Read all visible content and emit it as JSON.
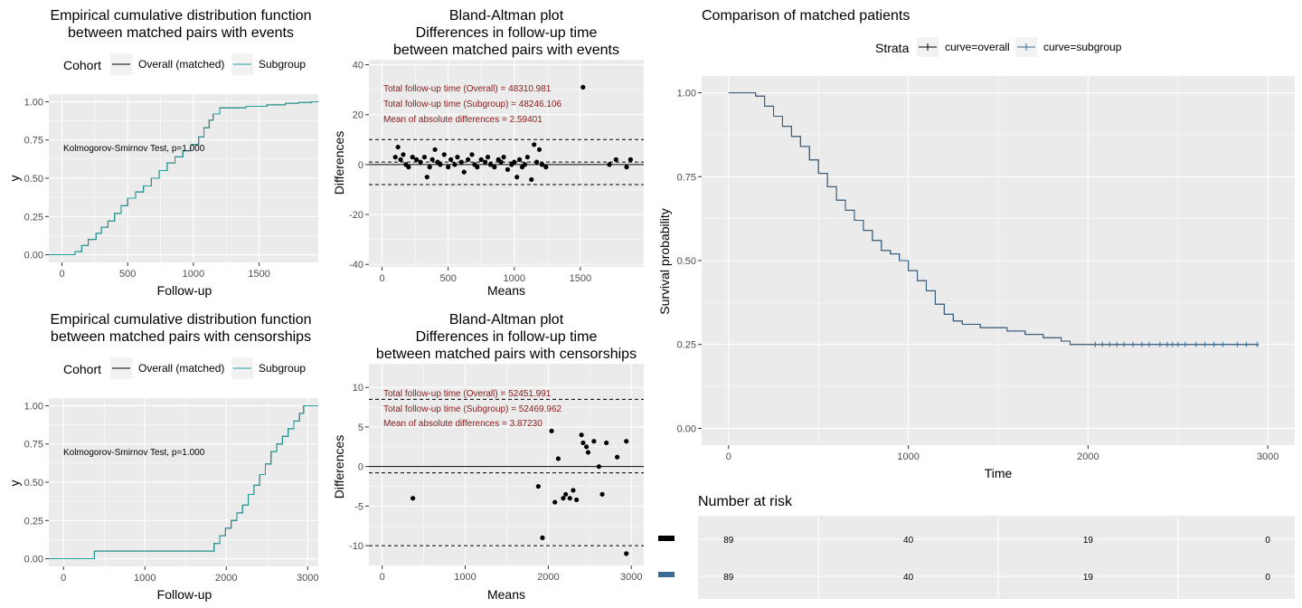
{
  "colors": {
    "panel_bg": "#ebebeb",
    "grid": "#ffffff",
    "overall": "#000000",
    "subgroup": "#1fa3a0",
    "km_overall": "#000000",
    "km_subgroup": "#3b6a93",
    "annotation": "#8b1a1a"
  },
  "chart_data": [
    {
      "id": "ecdf_events",
      "type": "line",
      "title_lines": [
        "Empirical cumulative distribution function",
        "between matched pairs with events"
      ],
      "xlabel": "Follow-up",
      "ylabel": "y",
      "xlim": [
        -100,
        1950
      ],
      "ylim": [
        -0.05,
        1.05
      ],
      "xticks": [
        0,
        500,
        1000,
        1500
      ],
      "yticks": [
        0,
        0.25,
        0.5,
        0.75,
        1
      ],
      "ytick_labels": [
        "0.00",
        "0.25",
        "0.50",
        "0.75",
        "1.00"
      ],
      "legend": {
        "title": "Cohort",
        "items": [
          "Overall (matched)",
          "Subgroup"
        ]
      },
      "annotation": "Kolmogorov-Smirnov Test, p=1.000",
      "series": [
        {
          "name": "Overall (matched)",
          "x": [
            -100,
            100,
            150,
            200,
            260,
            300,
            350,
            400,
            450,
            500,
            560,
            620,
            680,
            740,
            800,
            860,
            920,
            980,
            1040,
            1080,
            1120,
            1150,
            1200,
            1300,
            1400,
            1480,
            1560,
            1700,
            1800,
            1900,
            1950
          ],
          "y": [
            0,
            0.02,
            0.06,
            0.1,
            0.14,
            0.18,
            0.22,
            0.27,
            0.32,
            0.37,
            0.41,
            0.45,
            0.5,
            0.55,
            0.6,
            0.64,
            0.68,
            0.72,
            0.77,
            0.83,
            0.88,
            0.92,
            0.96,
            0.96,
            0.97,
            0.97,
            0.98,
            0.99,
            0.995,
            1,
            1
          ]
        },
        {
          "name": "Subgroup",
          "x": [
            -100,
            100,
            150,
            200,
            260,
            300,
            350,
            400,
            450,
            500,
            560,
            620,
            680,
            740,
            800,
            860,
            920,
            980,
            1040,
            1080,
            1120,
            1150,
            1200,
            1300,
            1400,
            1480,
            1560,
            1700,
            1800,
            1900,
            1950
          ],
          "y": [
            0,
            0.02,
            0.06,
            0.1,
            0.14,
            0.18,
            0.22,
            0.27,
            0.32,
            0.37,
            0.41,
            0.45,
            0.5,
            0.55,
            0.6,
            0.64,
            0.68,
            0.72,
            0.77,
            0.83,
            0.88,
            0.92,
            0.96,
            0.96,
            0.97,
            0.97,
            0.98,
            0.99,
            0.995,
            1,
            1
          ]
        }
      ]
    },
    {
      "id": "ecdf_censor",
      "type": "line",
      "title_lines": [
        "Empirical cumulative distribution function",
        "between matched pairs with censorships"
      ],
      "xlabel": "Follow-up",
      "ylabel": "y",
      "xlim": [
        -180,
        3130
      ],
      "ylim": [
        -0.05,
        1.05
      ],
      "xticks": [
        0,
        1000,
        2000,
        3000
      ],
      "yticks": [
        0,
        0.25,
        0.5,
        0.75,
        1
      ],
      "ytick_labels": [
        "0.00",
        "0.25",
        "0.50",
        "0.75",
        "1.00"
      ],
      "legend": {
        "title": "Cohort",
        "items": [
          "Overall (matched)",
          "Subgroup"
        ]
      },
      "annotation": "Kolmogorov-Smirnov Test, p=1.000",
      "series": [
        {
          "name": "Overall (matched)",
          "x": [
            -180,
            380,
            1800,
            1850,
            1920,
            1990,
            2060,
            2130,
            2200,
            2270,
            2340,
            2410,
            2480,
            2550,
            2620,
            2690,
            2760,
            2830,
            2900,
            2950,
            3000,
            3130
          ],
          "y": [
            0,
            0.05,
            0.05,
            0.1,
            0.15,
            0.2,
            0.25,
            0.3,
            0.35,
            0.42,
            0.48,
            0.55,
            0.62,
            0.7,
            0.75,
            0.8,
            0.85,
            0.9,
            0.95,
            1,
            1,
            1
          ]
        },
        {
          "name": "Subgroup",
          "x": [
            -180,
            380,
            1800,
            1850,
            1920,
            1990,
            2060,
            2130,
            2200,
            2270,
            2340,
            2410,
            2480,
            2550,
            2620,
            2690,
            2760,
            2830,
            2900,
            2950,
            3000,
            3130
          ],
          "y": [
            0,
            0.05,
            0.05,
            0.1,
            0.15,
            0.2,
            0.25,
            0.3,
            0.35,
            0.42,
            0.48,
            0.55,
            0.62,
            0.7,
            0.75,
            0.8,
            0.85,
            0.9,
            0.95,
            1,
            1,
            1
          ]
        }
      ]
    },
    {
      "id": "ba_events",
      "type": "scatter",
      "title_lines": [
        "Bland-Altman plot",
        "Differences in follow-up time",
        "between matched pairs with events"
      ],
      "xlabel": "Means",
      "ylabel": "Differences",
      "xlim": [
        -100,
        1980
      ],
      "ylim": [
        -41,
        42
      ],
      "xticks": [
        0,
        500,
        1000,
        1500
      ],
      "yticks": [
        -40,
        -20,
        0,
        20,
        40
      ],
      "hlines_solid": [
        0
      ],
      "hlines_dashed": [
        10,
        1,
        -8
      ],
      "annotations": [
        "Total follow-up time (Overall) = 48310.981",
        "Total follow-up time (Subgroup) = 48246.106",
        "Mean of absolute differences = 2.59401"
      ],
      "points": [
        [
          100,
          3
        ],
        [
          120,
          7
        ],
        [
          140,
          2
        ],
        [
          160,
          4
        ],
        [
          180,
          0
        ],
        [
          200,
          -1
        ],
        [
          230,
          3
        ],
        [
          260,
          2
        ],
        [
          290,
          1
        ],
        [
          320,
          3
        ],
        [
          340,
          -5
        ],
        [
          360,
          -1
        ],
        [
          380,
          2
        ],
        [
          400,
          6
        ],
        [
          420,
          1
        ],
        [
          440,
          0
        ],
        [
          470,
          4
        ],
        [
          500,
          -1
        ],
        [
          520,
          2
        ],
        [
          550,
          0
        ],
        [
          570,
          3
        ],
        [
          600,
          1
        ],
        [
          620,
          -3
        ],
        [
          650,
          2
        ],
        [
          680,
          4
        ],
        [
          700,
          0
        ],
        [
          720,
          -1
        ],
        [
          750,
          2
        ],
        [
          780,
          1
        ],
        [
          800,
          3
        ],
        [
          820,
          0
        ],
        [
          850,
          -1
        ],
        [
          880,
          2
        ],
        [
          900,
          1
        ],
        [
          920,
          3
        ],
        [
          950,
          -2
        ],
        [
          980,
          0
        ],
        [
          1000,
          1
        ],
        [
          1020,
          -5
        ],
        [
          1040,
          2
        ],
        [
          1060,
          -1
        ],
        [
          1080,
          0
        ],
        [
          1100,
          3
        ],
        [
          1130,
          -6
        ],
        [
          1150,
          8
        ],
        [
          1170,
          1
        ],
        [
          1190,
          6
        ],
        [
          1210,
          0
        ],
        [
          1240,
          -1
        ],
        [
          1520,
          31
        ],
        [
          1720,
          0
        ],
        [
          1770,
          2
        ],
        [
          1850,
          -1
        ],
        [
          1880,
          2
        ]
      ]
    },
    {
      "id": "ba_censor",
      "type": "scatter",
      "title_lines": [
        "Bland-Altman plot",
        "Differences in follow-up time",
        "between matched pairs with censorships"
      ],
      "xlabel": "Means",
      "ylabel": "Differences",
      "xlim": [
        -160,
        3150
      ],
      "ylim": [
        -12.5,
        13
      ],
      "xticks": [
        0,
        1000,
        2000,
        3000
      ],
      "yticks": [
        -10,
        -5,
        0,
        5,
        10
      ],
      "hlines_solid": [
        0
      ],
      "hlines_dashed": [
        8.5,
        -0.8,
        -10
      ],
      "annotations": [
        "Total follow-up time (Overall) = 52451.991",
        "Total follow-up time (Subgroup) = 52469.962",
        "Mean of absolute differences = 3.87230"
      ],
      "points": [
        [
          370,
          -4
        ],
        [
          1880,
          -2.5
        ],
        [
          1930,
          -9
        ],
        [
          2040,
          4.5
        ],
        [
          2080,
          -4.5
        ],
        [
          2120,
          1
        ],
        [
          2180,
          -4
        ],
        [
          2210,
          -3.5
        ],
        [
          2260,
          -4
        ],
        [
          2300,
          -3
        ],
        [
          2340,
          -4.2
        ],
        [
          2400,
          4
        ],
        [
          2420,
          3
        ],
        [
          2460,
          2.5
        ],
        [
          2480,
          1.8
        ],
        [
          2550,
          3.2
        ],
        [
          2610,
          0
        ],
        [
          2650,
          -3.5
        ],
        [
          2700,
          3
        ],
        [
          2830,
          1.2
        ],
        [
          2940,
          3.2
        ],
        [
          2940,
          -11
        ]
      ]
    },
    {
      "id": "km",
      "type": "line",
      "title": "Comparison of matched patients",
      "xlabel": "Time",
      "ylabel": "Survival probability",
      "xlim": [
        -150,
        3150
      ],
      "ylim": [
        -0.05,
        1.05
      ],
      "xticks": [
        0,
        1000,
        2000,
        3000
      ],
      "yticks": [
        0,
        0.25,
        0.5,
        0.75,
        1
      ],
      "ytick_labels": [
        "0.00",
        "0.25",
        "0.50",
        "0.75",
        "1.00"
      ],
      "legend": {
        "title": "Strata",
        "items": [
          "curve=overall",
          "curve=subgroup"
        ]
      },
      "series": [
        {
          "name": "curve=overall",
          "x": [
            0,
            150,
            200,
            250,
            300,
            350,
            400,
            450,
            500,
            550,
            600,
            650,
            700,
            750,
            800,
            850,
            900,
            950,
            1000,
            1050,
            1100,
            1150,
            1200,
            1250,
            1300,
            1400,
            1500,
            1550,
            1650,
            1750,
            1850,
            1900,
            1950,
            2950
          ],
          "y": [
            1,
            0.99,
            0.96,
            0.93,
            0.9,
            0.87,
            0.84,
            0.8,
            0.76,
            0.72,
            0.68,
            0.65,
            0.62,
            0.59,
            0.56,
            0.53,
            0.52,
            0.5,
            0.47,
            0.44,
            0.41,
            0.37,
            0.34,
            0.32,
            0.31,
            0.3,
            0.3,
            0.29,
            0.28,
            0.27,
            0.26,
            0.25,
            0.25,
            0.25
          ]
        },
        {
          "name": "curve=subgroup",
          "x": [
            0,
            150,
            200,
            250,
            300,
            350,
            400,
            450,
            500,
            550,
            600,
            650,
            700,
            750,
            800,
            850,
            900,
            950,
            1000,
            1050,
            1100,
            1150,
            1200,
            1250,
            1300,
            1400,
            1500,
            1550,
            1650,
            1750,
            1850,
            1900,
            1950,
            2950
          ],
          "y": [
            1,
            0.99,
            0.96,
            0.93,
            0.9,
            0.87,
            0.84,
            0.8,
            0.76,
            0.72,
            0.68,
            0.65,
            0.62,
            0.59,
            0.56,
            0.53,
            0.52,
            0.5,
            0.47,
            0.44,
            0.41,
            0.37,
            0.34,
            0.32,
            0.31,
            0.3,
            0.3,
            0.29,
            0.28,
            0.27,
            0.26,
            0.25,
            0.25,
            0.25
          ]
        }
      ],
      "censor_times": [
        2040,
        2080,
        2120,
        2160,
        2200,
        2250,
        2300,
        2340,
        2400,
        2440,
        2470,
        2500,
        2540,
        2600,
        2650,
        2700,
        2750,
        2830,
        2880,
        2940
      ]
    }
  ],
  "risk_table": {
    "title": "Number at risk",
    "times": [
      0,
      1000,
      2000,
      3000
    ],
    "rows": [
      {
        "name": "curve=overall",
        "values": [
          "89",
          "40",
          "19",
          "0"
        ]
      },
      {
        "name": "curve=subgroup",
        "values": [
          "89",
          "40",
          "19",
          "0"
        ]
      }
    ]
  }
}
